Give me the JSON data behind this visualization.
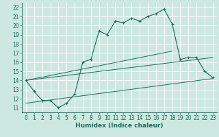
{
  "xlabel": "Humidex (Indice chaleur)",
  "xlim": [
    -0.5,
    23.5
  ],
  "ylim": [
    10.5,
    22.5
  ],
  "xticks": [
    0,
    1,
    2,
    3,
    4,
    5,
    6,
    7,
    8,
    9,
    10,
    11,
    12,
    13,
    14,
    15,
    16,
    17,
    18,
    19,
    20,
    21,
    22,
    23
  ],
  "yticks": [
    11,
    12,
    13,
    14,
    15,
    16,
    17,
    18,
    19,
    20,
    21,
    22
  ],
  "bg_color": "#cce8e0",
  "line_color": "#1a6b5a",
  "grid_color": "#ffffff",
  "line1_x": [
    0,
    1,
    2,
    3,
    4,
    5,
    6,
    7,
    8,
    9,
    10,
    11,
    12,
    13,
    14,
    15,
    16,
    17,
    18,
    19,
    20,
    21,
    22,
    23
  ],
  "line1_y": [
    14.0,
    12.8,
    11.8,
    11.8,
    11.0,
    11.5,
    12.5,
    16.0,
    16.3,
    19.4,
    19.0,
    20.5,
    20.3,
    20.8,
    20.5,
    21.0,
    21.3,
    21.8,
    20.2,
    16.3,
    16.5,
    16.5,
    15.0,
    14.3
  ],
  "line2_x": [
    0,
    18
  ],
  "line2_y": [
    14.0,
    17.2
  ],
  "line3_x": [
    0,
    23
  ],
  "line3_y": [
    14.0,
    16.5
  ],
  "line4_x": [
    0,
    23
  ],
  "line4_y": [
    11.5,
    14.2
  ],
  "label_fontsize": 6.5,
  "tick_fontsize": 5.5
}
